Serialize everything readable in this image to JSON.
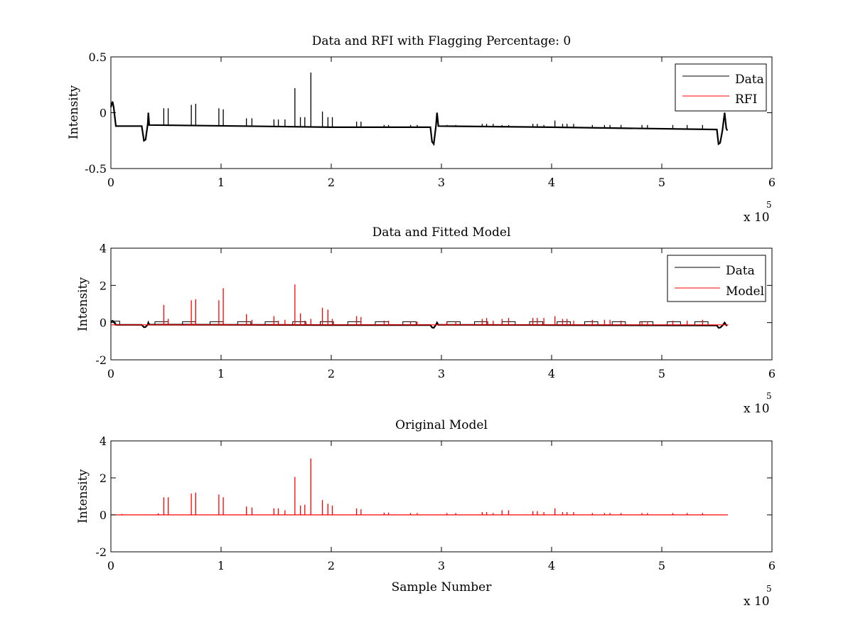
{
  "chart_data": [
    {
      "type": "line",
      "title": "Data and RFI with Flagging Percentage: 0",
      "xlabel": "",
      "ylabel": "Intensity",
      "xlim": [
        0,
        600000
      ],
      "ylim": [
        -0.5,
        0.5
      ],
      "xticks": [
        0,
        100000,
        200000,
        300000,
        400000,
        500000,
        600000
      ],
      "xtick_labels": [
        "0",
        "1",
        "2",
        "3",
        "4",
        "5",
        "6"
      ],
      "yticks": [
        -0.5,
        0,
        0.5
      ],
      "ytick_labels": [
        "-0.5",
        "0",
        "0.5"
      ],
      "x_multiplier": {
        "base": "x 10",
        "exponent": "5"
      },
      "legend": {
        "position": "top-right",
        "entries": [
          "Data",
          "RFI"
        ]
      },
      "series": [
        {
          "name": "Data",
          "color": "#000000",
          "baseline": [
            [
              0,
              0.05
            ],
            [
              1500,
              0.1
            ],
            [
              2500,
              0.05
            ],
            [
              4500,
              -0.12
            ],
            [
              28000,
              -0.12
            ],
            [
              30000,
              -0.25
            ],
            [
              31500,
              -0.24
            ],
            [
              33500,
              -0.1
            ],
            [
              34000,
              0.0
            ],
            [
              34800,
              -0.11
            ],
            [
              120000,
              -0.12
            ],
            [
              200000,
              -0.13
            ],
            [
              290000,
              -0.13
            ],
            [
              291500,
              -0.26
            ],
            [
              293000,
              -0.28
            ],
            [
              295000,
              -0.12
            ],
            [
              296000,
              0.0
            ],
            [
              297200,
              -0.12
            ],
            [
              400000,
              -0.13
            ],
            [
              550000,
              -0.15
            ],
            [
              551500,
              -0.28
            ],
            [
              553000,
              -0.27
            ],
            [
              555000,
              -0.16
            ],
            [
              557000,
              0.0
            ],
            [
              558500,
              -0.14
            ],
            [
              559500,
              -0.16
            ]
          ],
          "spikes": [
            [
              48000,
              0.04
            ],
            [
              52000,
              0.04
            ],
            [
              73000,
              0.07
            ],
            [
              77000,
              0.08
            ],
            [
              98000,
              0.04
            ],
            [
              102000,
              0.03
            ],
            [
              123000,
              -0.05
            ],
            [
              128000,
              -0.05
            ],
            [
              148000,
              -0.06
            ],
            [
              152000,
              -0.06
            ],
            [
              158000,
              -0.06
            ],
            [
              167000,
              0.22
            ],
            [
              172000,
              -0.04
            ],
            [
              176000,
              -0.04
            ],
            [
              181500,
              0.36
            ],
            [
              192000,
              0.01
            ],
            [
              197000,
              -0.04
            ],
            [
              201000,
              -0.04
            ],
            [
              223000,
              -0.08
            ],
            [
              227000,
              -0.08
            ],
            [
              248000,
              -0.11
            ],
            [
              252000,
              -0.11
            ],
            [
              272000,
              -0.11
            ],
            [
              278000,
              -0.11
            ],
            [
              305000,
              -0.11
            ],
            [
              313000,
              -0.11
            ],
            [
              337000,
              -0.1
            ],
            [
              341000,
              -0.1
            ],
            [
              347000,
              -0.1
            ],
            [
              355000,
              -0.11
            ],
            [
              361000,
              -0.11
            ],
            [
              383000,
              -0.1
            ],
            [
              387000,
              -0.1
            ],
            [
              393000,
              -0.11
            ],
            [
              403000,
              -0.07
            ],
            [
              410000,
              -0.1
            ],
            [
              414000,
              -0.1
            ],
            [
              420000,
              -0.1
            ],
            [
              437000,
              -0.11
            ],
            [
              448000,
              -0.11
            ],
            [
              453000,
              -0.11
            ],
            [
              463000,
              -0.11
            ],
            [
              482000,
              -0.11
            ],
            [
              487000,
              -0.11
            ],
            [
              510000,
              -0.11
            ],
            [
              523000,
              -0.11
            ],
            [
              537000,
              -0.11
            ]
          ]
        },
        {
          "name": "RFI",
          "color": "#ff0000",
          "points": []
        }
      ]
    },
    {
      "type": "line",
      "title": "Data and Fitted Model",
      "xlabel": "",
      "ylabel": "Intensity",
      "xlim": [
        0,
        600000
      ],
      "ylim": [
        -2,
        4
      ],
      "xticks": [
        0,
        100000,
        200000,
        300000,
        400000,
        500000,
        600000
      ],
      "xtick_labels": [
        "0",
        "1",
        "2",
        "3",
        "4",
        "5",
        "6"
      ],
      "yticks": [
        -2,
        0,
        2,
        4
      ],
      "ytick_labels": [
        "-2",
        "0",
        "2",
        "4"
      ],
      "x_multiplier": {
        "base": "x 10",
        "exponent": "5"
      },
      "legend": {
        "position": "top-right",
        "entries": [
          "Data",
          "Model"
        ]
      },
      "series": [
        {
          "name": "Data",
          "color": "#000000",
          "baseline": [
            [
              0,
              0.05
            ],
            [
              1500,
              0.1
            ],
            [
              2500,
              0.05
            ],
            [
              4500,
              -0.12
            ],
            [
              28000,
              -0.12
            ],
            [
              30000,
              -0.25
            ],
            [
              31500,
              -0.24
            ],
            [
              33500,
              -0.1
            ],
            [
              34000,
              0.0
            ],
            [
              34800,
              -0.11
            ],
            [
              120000,
              -0.12
            ],
            [
              200000,
              -0.13
            ],
            [
              290000,
              -0.13
            ],
            [
              291500,
              -0.26
            ],
            [
              293000,
              -0.28
            ],
            [
              295000,
              -0.12
            ],
            [
              296000,
              0.0
            ],
            [
              297200,
              -0.12
            ],
            [
              400000,
              -0.13
            ],
            [
              550000,
              -0.15
            ],
            [
              551500,
              -0.28
            ],
            [
              553000,
              -0.27
            ],
            [
              555000,
              -0.16
            ],
            [
              557000,
              0.0
            ],
            [
              558500,
              -0.14
            ],
            [
              559500,
              -0.16
            ]
          ],
          "pulses": [
            [
              0,
              8000,
              0.08
            ],
            [
              40000,
              52000,
              0.05
            ],
            [
              65000,
              77000,
              0.05
            ],
            [
              90000,
              102000,
              0.05
            ],
            [
              115000,
              127000,
              0.05
            ],
            [
              140000,
              152000,
              0.05
            ],
            [
              165000,
              177000,
              0.05
            ],
            [
              190000,
              202000,
              0.05
            ],
            [
              215000,
              227000,
              0.05
            ],
            [
              240000,
              252000,
              0.05
            ],
            [
              265000,
              277000,
              0.05
            ],
            [
              305000,
              317000,
              0.05
            ],
            [
              330000,
              342000,
              0.05
            ],
            [
              355000,
              367000,
              0.05
            ],
            [
              380000,
              392000,
              0.05
            ],
            [
              405000,
              417000,
              0.05
            ],
            [
              430000,
              442000,
              0.05
            ],
            [
              455000,
              467000,
              0.05
            ],
            [
              480000,
              492000,
              0.05
            ],
            [
              505000,
              517000,
              0.05
            ],
            [
              530000,
              542000,
              0.05
            ]
          ]
        },
        {
          "name": "Model",
          "color": "#ff0000",
          "baseline_value": -0.12,
          "spikes": [
            [
              48000,
              0.95
            ],
            [
              52000,
              0.2
            ],
            [
              73000,
              1.2
            ],
            [
              77000,
              1.25
            ],
            [
              98000,
              1.2
            ],
            [
              102000,
              1.85
            ],
            [
              123000,
              0.45
            ],
            [
              128000,
              0.15
            ],
            [
              148000,
              0.35
            ],
            [
              152000,
              0.1
            ],
            [
              158000,
              0.15
            ],
            [
              167000,
              2.05
            ],
            [
              172000,
              0.5
            ],
            [
              176000,
              0.1
            ],
            [
              181500,
              0.2
            ],
            [
              192000,
              0.8
            ],
            [
              197000,
              0.7
            ],
            [
              201000,
              0.2
            ],
            [
              223000,
              0.35
            ],
            [
              227000,
              0.3
            ],
            [
              248000,
              0.1
            ],
            [
              252000,
              0.1
            ],
            [
              272000,
              0.05
            ],
            [
              278000,
              0.05
            ],
            [
              305000,
              0.05
            ],
            [
              313000,
              0.05
            ],
            [
              337000,
              0.2
            ],
            [
              341000,
              0.25
            ],
            [
              347000,
              0.1
            ],
            [
              355000,
              0.2
            ],
            [
              361000,
              0.25
            ],
            [
              383000,
              0.25
            ],
            [
              387000,
              0.25
            ],
            [
              393000,
              0.25
            ],
            [
              403000,
              0.35
            ],
            [
              410000,
              0.2
            ],
            [
              414000,
              0.2
            ],
            [
              420000,
              0.1
            ],
            [
              437000,
              0.15
            ],
            [
              448000,
              0.15
            ],
            [
              453000,
              0.15
            ],
            [
              463000,
              0.1
            ],
            [
              482000,
              0.05
            ],
            [
              487000,
              0.05
            ],
            [
              510000,
              0.1
            ],
            [
              523000,
              0.1
            ],
            [
              537000,
              0.15
            ]
          ]
        }
      ]
    },
    {
      "type": "line",
      "title": "Original Model",
      "xlabel": "Sample Number",
      "ylabel": "Intensity",
      "xlim": [
        0,
        600000
      ],
      "ylim": [
        -2,
        4
      ],
      "xticks": [
        0,
        100000,
        200000,
        300000,
        400000,
        500000,
        600000
      ],
      "xtick_labels": [
        "0",
        "1",
        "2",
        "3",
        "4",
        "5",
        "6"
      ],
      "yticks": [
        -2,
        0,
        2,
        4
      ],
      "ytick_labels": [
        "-2",
        "0",
        "2",
        "4"
      ],
      "x_multiplier": {
        "base": "x 10",
        "exponent": "5"
      },
      "series": [
        {
          "color": "#ff0000",
          "baseline_value": 0,
          "x_end": 560000,
          "spikes": [
            [
              10000,
              0.05
            ],
            [
              43000,
              0.08
            ],
            [
              48000,
              0.95
            ],
            [
              52000,
              0.95
            ],
            [
              73000,
              1.15
            ],
            [
              77000,
              1.2
            ],
            [
              98000,
              1.1
            ],
            [
              102000,
              0.95
            ],
            [
              123000,
              0.45
            ],
            [
              128000,
              0.4
            ],
            [
              148000,
              0.35
            ],
            [
              152000,
              0.35
            ],
            [
              158000,
              0.25
            ],
            [
              167000,
              2.05
            ],
            [
              172000,
              0.5
            ],
            [
              176000,
              0.55
            ],
            [
              181500,
              3.05
            ],
            [
              192000,
              0.8
            ],
            [
              197000,
              0.6
            ],
            [
              201000,
              0.5
            ],
            [
              223000,
              0.35
            ],
            [
              227000,
              0.3
            ],
            [
              248000,
              0.12
            ],
            [
              252000,
              0.12
            ],
            [
              272000,
              0.1
            ],
            [
              278000,
              0.1
            ],
            [
              305000,
              0.1
            ],
            [
              313000,
              0.1
            ],
            [
              337000,
              0.15
            ],
            [
              341000,
              0.15
            ],
            [
              347000,
              0.1
            ],
            [
              355000,
              0.25
            ],
            [
              361000,
              0.25
            ],
            [
              383000,
              0.2
            ],
            [
              387000,
              0.2
            ],
            [
              393000,
              0.15
            ],
            [
              403000,
              0.35
            ],
            [
              410000,
              0.15
            ],
            [
              414000,
              0.15
            ],
            [
              420000,
              0.15
            ],
            [
              437000,
              0.1
            ],
            [
              448000,
              0.1
            ],
            [
              453000,
              0.1
            ],
            [
              463000,
              0.1
            ],
            [
              482000,
              0.1
            ],
            [
              487000,
              0.1
            ],
            [
              510000,
              0.1
            ],
            [
              523000,
              0.1
            ],
            [
              537000,
              0.1
            ]
          ]
        }
      ]
    }
  ]
}
